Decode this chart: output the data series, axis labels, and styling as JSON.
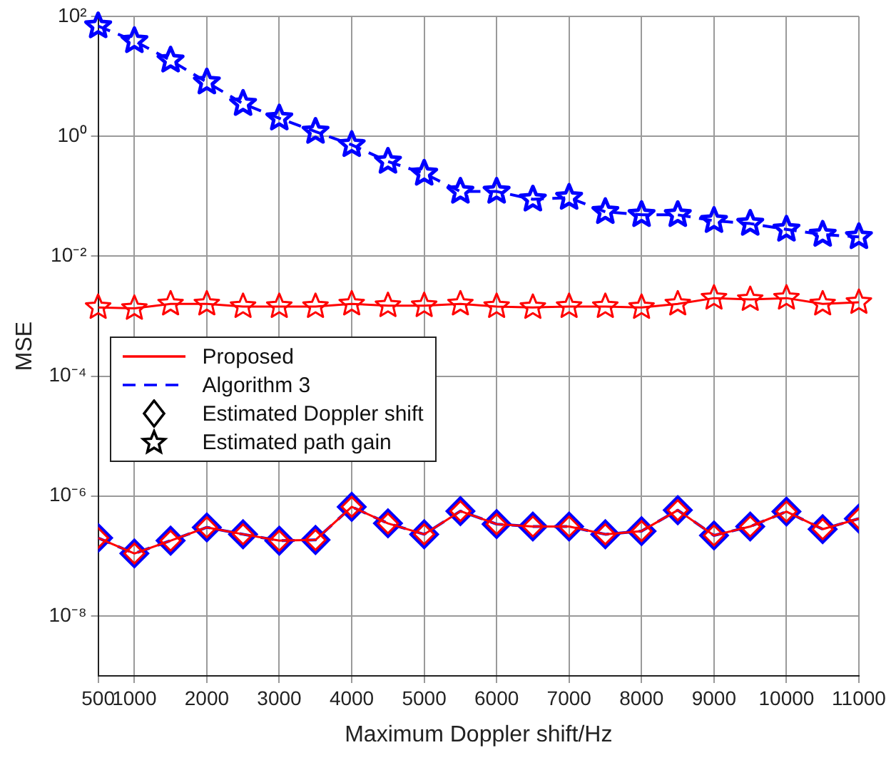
{
  "chart_data": {
    "type": "line",
    "xlabel": "Maximum Doppler shift/Hz",
    "ylabel": "MSE",
    "x": [
      500,
      1000,
      1500,
      2000,
      2500,
      3000,
      3500,
      4000,
      4500,
      5000,
      5500,
      6000,
      6500,
      7000,
      7500,
      8000,
      8500,
      9000,
      9500,
      10000,
      10500,
      11000
    ],
    "xlim": [
      500,
      11000
    ],
    "xticks": [
      500,
      1000,
      2000,
      3000,
      4000,
      5000,
      6000,
      7000,
      8000,
      9000,
      10000,
      11000
    ],
    "log": "y",
    "ylim": [
      1e-09,
      100
    ],
    "yticks": [
      {
        "value": 1e-08,
        "label": "10⁻⁸"
      },
      {
        "value": 1e-06,
        "label": "10⁻⁶"
      },
      {
        "value": 0.0001,
        "label": "10⁻⁴"
      },
      {
        "value": 0.01,
        "label": "10⁻²"
      },
      {
        "value": 1,
        "label": "10⁰"
      },
      {
        "value": 100,
        "label": "10²"
      }
    ],
    "grid": true,
    "legend": "left",
    "annotations": [
      "Estimated Doppler shift",
      "Estimated path gain"
    ],
    "series": [
      {
        "name": "Proposed",
        "color": "#ff0000",
        "line_style": "solid",
        "marker": "diamond",
        "values": [
          2e-07,
          1.1e-07,
          1.8e-07,
          3e-07,
          2.3e-07,
          1.8e-07,
          1.85e-07,
          6.6e-07,
          3.5e-07,
          2.3e-07,
          5.6e-07,
          3.4e-07,
          3.1e-07,
          3.1e-07,
          2.3e-07,
          2.6e-07,
          5.8e-07,
          2.2e-07,
          3.1e-07,
          5.5e-07,
          2.8e-07,
          4.2e-07
        ]
      },
      {
        "name": "Algorithm 3",
        "color": "#0000ff",
        "line_style": "dashed",
        "marker": "diamond",
        "values": [
          2e-07,
          1.1e-07,
          1.8e-07,
          3e-07,
          2.3e-07,
          1.8e-07,
          1.85e-07,
          6.6e-07,
          3.5e-07,
          2.3e-07,
          5.6e-07,
          3.4e-07,
          3.1e-07,
          3.1e-07,
          2.3e-07,
          2.6e-07,
          5.8e-07,
          2.2e-07,
          3.1e-07,
          5.5e-07,
          2.8e-07,
          4.2e-07
        ]
      },
      {
        "color": "#ff0000",
        "line_style": "solid",
        "marker": "star",
        "values": [
          0.0014,
          0.00135,
          0.0016,
          0.0016,
          0.00145,
          0.00145,
          0.00145,
          0.0016,
          0.0015,
          0.0015,
          0.0016,
          0.00145,
          0.0014,
          0.00145,
          0.00145,
          0.0014,
          0.0016,
          0.002,
          0.0019,
          0.002,
          0.0016,
          0.0017
        ]
      },
      {
        "color": "#0000ff",
        "line_style": "dashed",
        "marker": "star",
        "values": [
          69,
          39,
          18.5,
          8,
          3.5,
          2,
          1.2,
          0.72,
          0.38,
          0.24,
          0.12,
          0.12,
          0.089,
          0.095,
          0.055,
          0.049,
          0.049,
          0.039,
          0.035,
          0.028,
          0.023,
          0.021
        ]
      }
    ]
  }
}
